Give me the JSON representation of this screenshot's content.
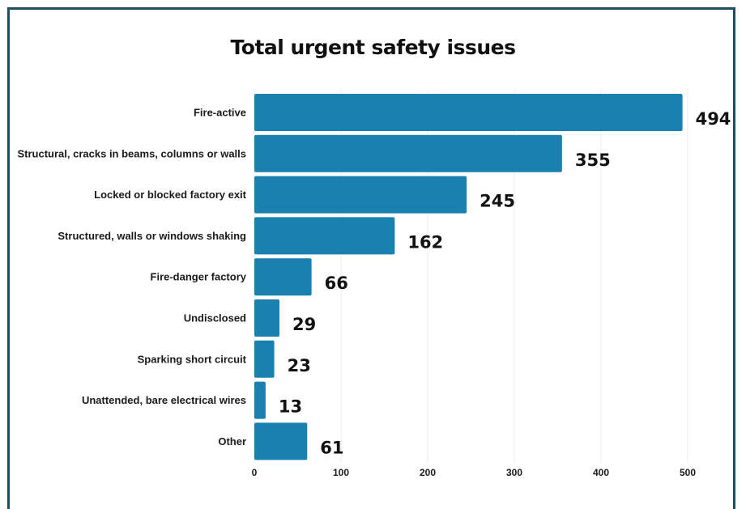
{
  "chart_data": {
    "type": "bar",
    "orientation": "horizontal",
    "title": "Total urgent safety issues",
    "xlabel": "",
    "ylabel": "",
    "categories": [
      "Fire-active",
      "Structural, cracks in beams, columns or walls",
      "Locked or blocked factory exit",
      "Structured, walls or windows shaking",
      "Fire-danger factory",
      "Undisclosed",
      "Sparking short circuit",
      "Unattended, bare electrical wires",
      "Other"
    ],
    "values": [
      494,
      355,
      245,
      162,
      66,
      29,
      23,
      13,
      61
    ],
    "xlim": [
      0,
      500
    ],
    "xticks": [
      0,
      100,
      200,
      300,
      400,
      500
    ],
    "grid": "vertical",
    "legend": "none",
    "colors": {
      "bar": "#1a80b0",
      "frame": "#1f4e63",
      "grid": "#ececec"
    }
  }
}
